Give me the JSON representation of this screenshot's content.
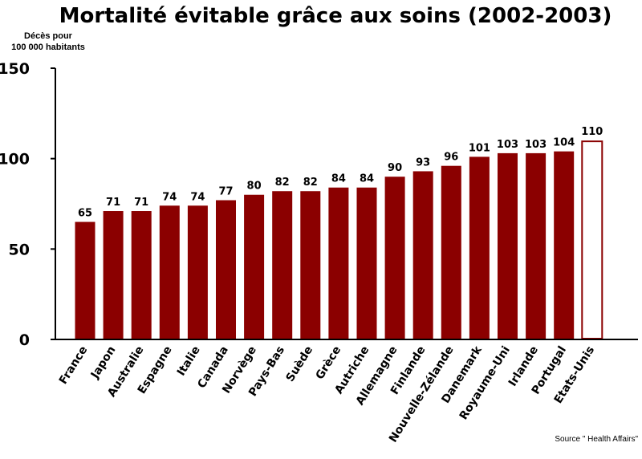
{
  "chart_data": {
    "type": "bar",
    "title": "Mortalité évitable grâce aux soins (2002-2003)",
    "ylabel_lines": [
      "Décès pour",
      "100 000 habitants"
    ],
    "ylim": [
      0,
      150
    ],
    "yticks": [
      0,
      50,
      100,
      150
    ],
    "categories": [
      "France",
      "Japon",
      "Australie",
      "Espagne",
      "Italie",
      "Canada",
      "Norvège",
      "Pays-Bas",
      "Suède",
      "Grèce",
      "Autriche",
      "Allemagne",
      "Finlande",
      "Nouvelle-Zélande",
      "Danemark",
      "Royaume-Uni",
      "Irlande",
      "Portugal",
      "Etats-Unis"
    ],
    "values": [
      65,
      71,
      71,
      74,
      74,
      77,
      80,
      82,
      82,
      84,
      84,
      90,
      93,
      96,
      101,
      103,
      103,
      104,
      110
    ],
    "highlighted": [
      "Etats-Unis"
    ],
    "bar_color": "#8b0000",
    "highlight_fill": "#ffffff",
    "grid": false,
    "source": "Source \" Health Affairs\""
  }
}
